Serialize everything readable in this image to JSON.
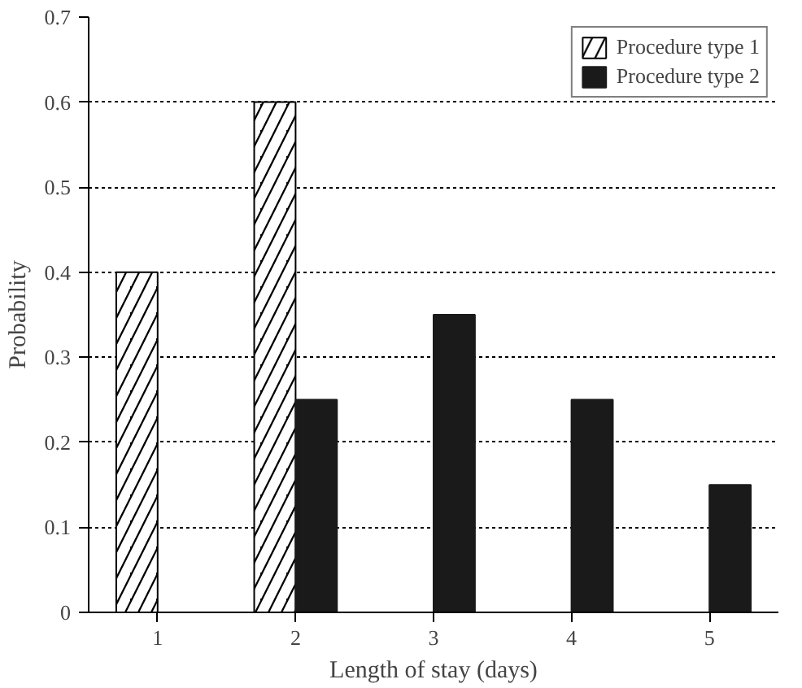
{
  "chart_data": {
    "type": "bar",
    "xlabel": "Length of stay (days)",
    "ylabel": "Probability",
    "categories": [
      "1",
      "2",
      "3",
      "4",
      "5"
    ],
    "series": [
      {
        "name": "Procedure type 1",
        "color": "#000000",
        "values": [
          0.4,
          0.6,
          null,
          null,
          null
        ]
      },
      {
        "name": "Procedure type 2",
        "color": "#1a1a1a",
        "values": [
          null,
          0.25,
          0.35,
          0.25,
          0.15
        ]
      }
    ],
    "ylim": [
      0,
      0.7
    ],
    "yticks": [
      {
        "value": 0,
        "label": "0"
      },
      0.1,
      0.2,
      0.3,
      0.4,
      0.5,
      0.6,
      0.7
    ],
    "grid": "y",
    "legend": "top right"
  }
}
